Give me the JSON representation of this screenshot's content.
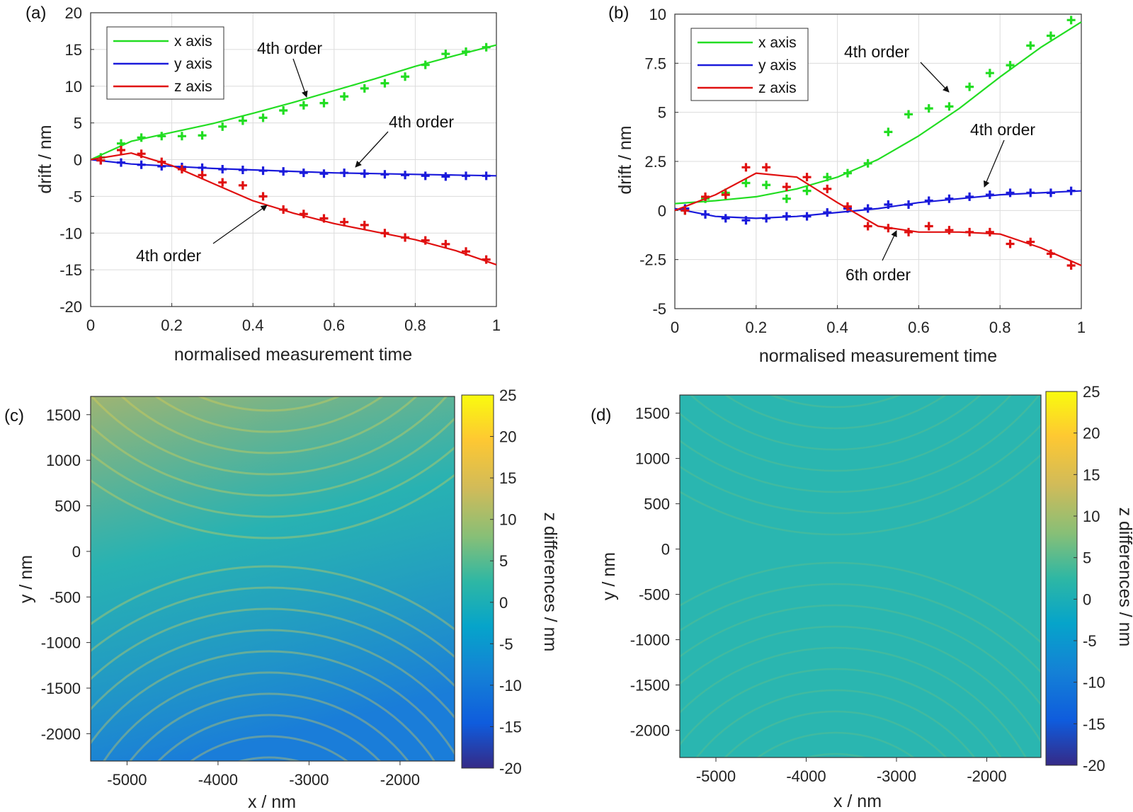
{
  "chart_data": [
    {
      "type": "line",
      "panel": "(a)",
      "xlabel": "normalised measurement time",
      "ylabel": "drift / nm",
      "xlim": [
        0,
        1
      ],
      "ylim": [
        -20,
        20
      ],
      "xticks": [
        "0",
        "0.2",
        "0.4",
        "0.6",
        "0.8",
        "1"
      ],
      "yticks": [
        "-20",
        "-15",
        "-10",
        "-5",
        "0",
        "5",
        "10",
        "15",
        "20"
      ],
      "grid": true,
      "legend": "top-left",
      "series": [
        {
          "name": "x axis",
          "color": "#22dd22",
          "points_x": [
            0.025,
            0.075,
            0.125,
            0.175,
            0.225,
            0.275,
            0.325,
            0.375,
            0.425,
            0.475,
            0.525,
            0.575,
            0.625,
            0.675,
            0.725,
            0.775,
            0.825,
            0.875,
            0.925,
            0.975
          ],
          "points_y": [
            0.3,
            2.2,
            3.0,
            3.2,
            3.2,
            3.3,
            4.5,
            5.3,
            5.7,
            6.7,
            7.4,
            7.7,
            8.6,
            9.7,
            10.4,
            11.3,
            12.9,
            14.4,
            14.7,
            15.3
          ],
          "fit_y": [
            0.0,
            2.5,
            3.7,
            4.9,
            6.3,
            7.8,
            9.4,
            11.0,
            12.7,
            14.2,
            15.6
          ]
        },
        {
          "name": "y axis",
          "color": "#1a1adb",
          "points_x": [
            0.025,
            0.075,
            0.125,
            0.175,
            0.225,
            0.275,
            0.325,
            0.375,
            0.425,
            0.475,
            0.525,
            0.575,
            0.625,
            0.675,
            0.725,
            0.775,
            0.825,
            0.875,
            0.925,
            0.975
          ],
          "points_y": [
            -0.1,
            -0.4,
            -0.7,
            -0.9,
            -1.0,
            -1.1,
            -1.3,
            -1.4,
            -1.5,
            -1.6,
            -1.8,
            -1.9,
            -1.8,
            -1.9,
            -2.0,
            -2.1,
            -2.2,
            -2.3,
            -2.2,
            -2.2
          ],
          "fit_y": [
            0.0,
            -0.6,
            -0.9,
            -1.2,
            -1.4,
            -1.6,
            -1.8,
            -1.9,
            -2.0,
            -2.1,
            -2.2
          ]
        },
        {
          "name": "z axis",
          "color": "#e01010",
          "points_x": [
            0.025,
            0.075,
            0.125,
            0.175,
            0.225,
            0.275,
            0.325,
            0.375,
            0.425,
            0.475,
            0.525,
            0.575,
            0.625,
            0.675,
            0.725,
            0.775,
            0.825,
            0.875,
            0.925,
            0.975
          ],
          "points_y": [
            -0.1,
            1.3,
            0.8,
            -0.3,
            -1.3,
            -2.1,
            -3.1,
            -3.5,
            -5.0,
            -6.8,
            -7.4,
            -8.0,
            -8.5,
            -8.9,
            -10.0,
            -10.6,
            -11.0,
            -11.5,
            -12.5,
            -13.6
          ],
          "fit_y": [
            0.0,
            0.9,
            -0.8,
            -3.2,
            -5.6,
            -7.3,
            -8.7,
            -9.8,
            -10.9,
            -12.4,
            -14.3
          ]
        }
      ],
      "annotations": [
        "4th order",
        "4th order",
        "4th order"
      ]
    },
    {
      "type": "line",
      "panel": "(b)",
      "xlabel": "normalised measurement time",
      "ylabel": "drift / nm",
      "xlim": [
        0,
        1
      ],
      "ylim": [
        -5,
        10
      ],
      "xticks": [
        "0",
        "0.2",
        "0.4",
        "0.6",
        "0.8",
        "1"
      ],
      "yticks": [
        "-5",
        "-2.5",
        "0",
        "2.5",
        "5",
        "7.5",
        "10"
      ],
      "grid": true,
      "legend": "top-left",
      "series": [
        {
          "name": "x axis",
          "color": "#22dd22",
          "points_x": [
            0.025,
            0.075,
            0.125,
            0.175,
            0.225,
            0.275,
            0.325,
            0.375,
            0.425,
            0.475,
            0.525,
            0.575,
            0.625,
            0.675,
            0.725,
            0.775,
            0.825,
            0.875,
            0.925,
            0.975
          ],
          "points_y": [
            0.0,
            0.6,
            0.9,
            1.4,
            1.3,
            0.6,
            1.0,
            1.7,
            1.9,
            2.4,
            4.0,
            4.9,
            5.2,
            5.3,
            6.3,
            7.0,
            7.4,
            8.4,
            8.9,
            9.7
          ],
          "fit_y": [
            0.35,
            0.5,
            0.7,
            1.1,
            1.7,
            2.6,
            3.8,
            5.2,
            6.8,
            8.3,
            9.6
          ]
        },
        {
          "name": "y axis",
          "color": "#1a1adb",
          "points_x": [
            0.025,
            0.075,
            0.125,
            0.175,
            0.225,
            0.275,
            0.325,
            0.375,
            0.425,
            0.475,
            0.525,
            0.575,
            0.625,
            0.675,
            0.725,
            0.775,
            0.825,
            0.875,
            0.925,
            0.975
          ],
          "points_y": [
            0.1,
            -0.2,
            -0.4,
            -0.5,
            -0.4,
            -0.3,
            -0.3,
            -0.1,
            0.1,
            0.1,
            0.3,
            0.3,
            0.5,
            0.6,
            0.7,
            0.8,
            0.9,
            0.9,
            0.9,
            1.0
          ],
          "fit_y": [
            0.1,
            -0.3,
            -0.4,
            -0.3,
            -0.1,
            0.1,
            0.4,
            0.6,
            0.8,
            0.9,
            1.0
          ]
        },
        {
          "name": "z axis",
          "color": "#e01010",
          "points_x": [
            0.025,
            0.075,
            0.125,
            0.175,
            0.225,
            0.275,
            0.325,
            0.375,
            0.425,
            0.475,
            0.525,
            0.575,
            0.625,
            0.675,
            0.725,
            0.775,
            0.825,
            0.875,
            0.925,
            0.975
          ],
          "points_y": [
            0.0,
            0.7,
            0.8,
            2.2,
            2.2,
            1.2,
            1.7,
            1.1,
            0.2,
            -0.8,
            -0.9,
            -1.1,
            -0.8,
            -1.0,
            -1.1,
            -1.1,
            -1.7,
            -1.6,
            -2.2,
            -2.8
          ],
          "fit_y": [
            0.0,
            0.8,
            1.9,
            1.7,
            0.4,
            -0.8,
            -1.1,
            -1.1,
            -1.2,
            -1.9,
            -2.8
          ]
        }
      ],
      "annotations": [
        "4th order",
        "4th order",
        "6th order"
      ]
    },
    {
      "type": "heatmap",
      "panel": "(c)",
      "xlabel": "x / nm",
      "ylabel": "y / nm",
      "colorbar_label": "z differences / nm",
      "xlim": [
        -5400,
        -1400
      ],
      "ylim": [
        -2300,
        1700
      ],
      "xticks": [
        "-5000",
        "-4000",
        "-3000",
        "-2000"
      ],
      "yticks": [
        "1500",
        "1000",
        "500",
        "0",
        "-500",
        "-1000",
        "-1500",
        "-2000"
      ],
      "clim": [
        -20,
        25
      ],
      "cticks": [
        "25",
        "20",
        "15",
        "10",
        "5",
        "0",
        "-5",
        "-10",
        "-15",
        "-20"
      ],
      "colormap": "parula"
    },
    {
      "type": "heatmap",
      "panel": "(d)",
      "xlabel": "x / nm",
      "ylabel": "y / nm",
      "colorbar_label": "z differences / nm",
      "xlim": [
        -5400,
        -1400
      ],
      "ylim": [
        -2300,
        1700
      ],
      "xticks": [
        "-5000",
        "-4000",
        "-3000",
        "-2000"
      ],
      "yticks": [
        "1500",
        "1000",
        "500",
        "0",
        "-500",
        "-1000",
        "-1500",
        "-2000"
      ],
      "clim": [
        -20,
        25
      ],
      "cticks": [
        "25",
        "20",
        "15",
        "10",
        "5",
        "0",
        "-5",
        "-10",
        "-15",
        "-20"
      ],
      "colormap": "parula"
    }
  ]
}
